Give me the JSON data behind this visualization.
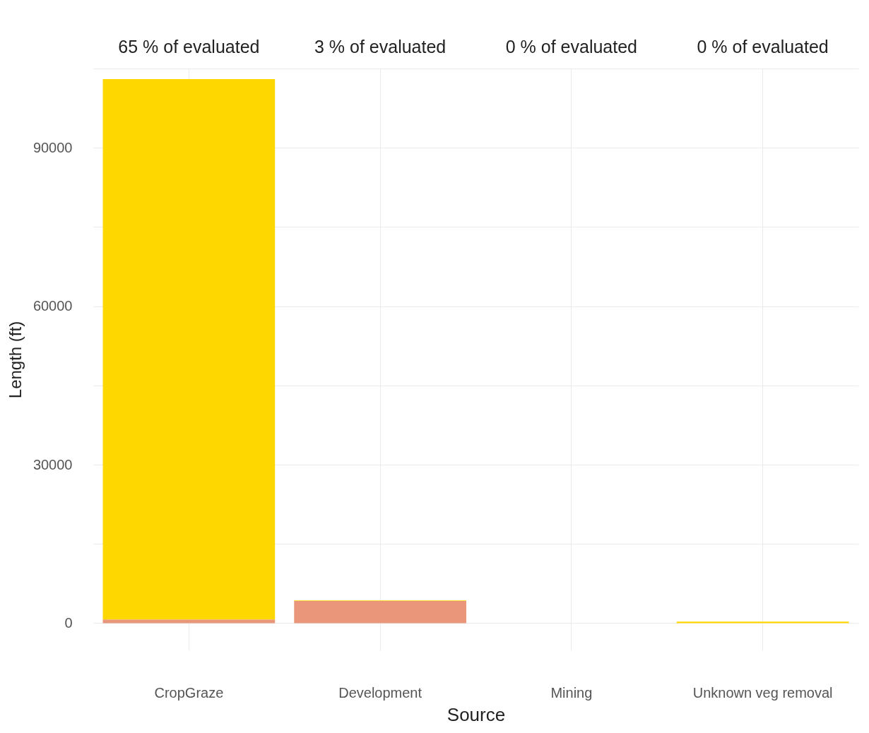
{
  "chart_data": {
    "type": "bar",
    "stacked": true,
    "xlabel": "Source",
    "ylabel": "Length (ft)",
    "categories": [
      "CropGraze",
      "Development",
      "Mining",
      "Unknown veg removal"
    ],
    "series": [
      {
        "color": "#e9967a",
        "values": [
          700,
          4200,
          0,
          0
        ]
      },
      {
        "color": "#ffd700",
        "values": [
          102300,
          100,
          0,
          300
        ]
      }
    ],
    "ylim": [
      -5150,
      105000
    ],
    "yticks": [
      0,
      {
        "value": 15000,
        "label": null
      },
      30000,
      {
        "value": 45000,
        "label": null
      },
      60000,
      {
        "value": 75000,
        "label": null
      },
      90000,
      {
        "value": 105000,
        "label": null
      }
    ],
    "grid": true,
    "legend": false,
    "annotations": [
      "65 % of evaluated",
      "3 % of evaluated",
      "0 % of evaluated",
      "0 % of evaluated"
    ]
  }
}
